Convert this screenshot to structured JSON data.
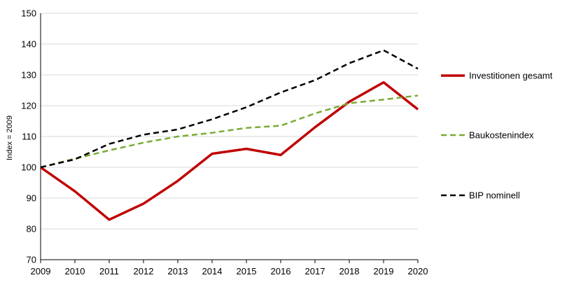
{
  "chart_data": {
    "type": "line",
    "title": "",
    "xlabel": "",
    "ylabel": "Index = 2009",
    "ylim": [
      70,
      150
    ],
    "yticks": [
      70,
      80,
      90,
      100,
      110,
      120,
      130,
      140,
      150
    ],
    "x": [
      2009,
      2010,
      2011,
      2012,
      2013,
      2014,
      2015,
      2016,
      2017,
      2018,
      2019,
      2020
    ],
    "grid": "horizontal",
    "legend_position": "right",
    "series": [
      {
        "name": "Investitionen gesamt",
        "color": "#c00000",
        "style": "solid",
        "values": [
          100,
          92.2,
          83,
          88.2,
          95.6,
          104.4,
          106,
          104,
          113,
          121.3,
          127.6,
          118.8
        ]
      },
      {
        "name": "Baukostenindex",
        "color": "#7aab32",
        "style": "dashed",
        "values": [
          100,
          102.8,
          105.5,
          108,
          110,
          111.2,
          112.8,
          113.5,
          117.5,
          120.8,
          122,
          123.3
        ]
      },
      {
        "name": "BIP nominell",
        "color": "#000000",
        "style": "dashed",
        "values": [
          100,
          102.6,
          107.6,
          110.6,
          112.3,
          115.6,
          119.5,
          124.3,
          128.3,
          133.8,
          138,
          132
        ]
      }
    ]
  }
}
